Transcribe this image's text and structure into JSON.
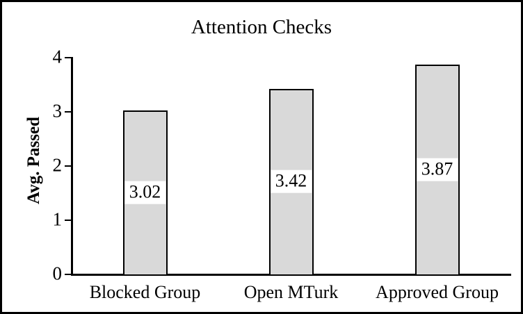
{
  "figure": {
    "background": "#ffffff",
    "border_color": "#000000"
  },
  "chart_data": {
    "type": "bar",
    "title": "Attention Checks",
    "xlabel": "",
    "ylabel": "Avg. Passed",
    "categories": [
      "Blocked Group",
      "Open MTurk",
      "Approved Group"
    ],
    "values": [
      3.02,
      3.42,
      3.87
    ],
    "data_labels": [
      "3.02",
      "3.42",
      "3.87"
    ],
    "ylim": [
      0,
      4
    ],
    "yticks": [
      0,
      1,
      2,
      3,
      4
    ],
    "ytick_labels": [
      "0",
      "1",
      "2",
      "3",
      "4"
    ],
    "grid": false,
    "legend": false,
    "bar_fill": "#d9d9d9",
    "bar_border": "#000000",
    "axis_color": "#000000",
    "label_box_fill": "#ffffff"
  }
}
